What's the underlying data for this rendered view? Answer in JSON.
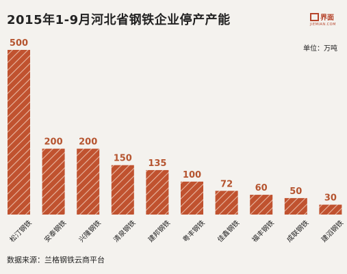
{
  "title": "2015年1-9月河北省钢铁企业停产产能",
  "logo": {
    "text": "界面",
    "sub": "JIEMIAN.COM"
  },
  "unit_label": "单位：万吨",
  "source": "数据来源：兰格钢铁云商平台",
  "colors": {
    "bar": "#c0522f",
    "stripe": "#e9b9a4",
    "value_text": "#b5542f",
    "background": "#f4f2ee"
  },
  "chart_data": {
    "type": "bar",
    "title": "2015年1-9月河北省钢铁企业停产产能",
    "categories": [
      "松汀钢铁",
      "安泰钢铁",
      "兴隆钢铁",
      "清泉钢铁",
      "建邦钢铁",
      "粤丰钢铁",
      "佳鑫钢铁",
      "福丰钢铁",
      "成联钢铁",
      "建滔钢铁"
    ],
    "values": [
      500,
      200,
      200,
      150,
      135,
      100,
      72,
      60,
      50,
      30
    ],
    "ylim": [
      0,
      500
    ],
    "grid": false,
    "legend": "none"
  }
}
